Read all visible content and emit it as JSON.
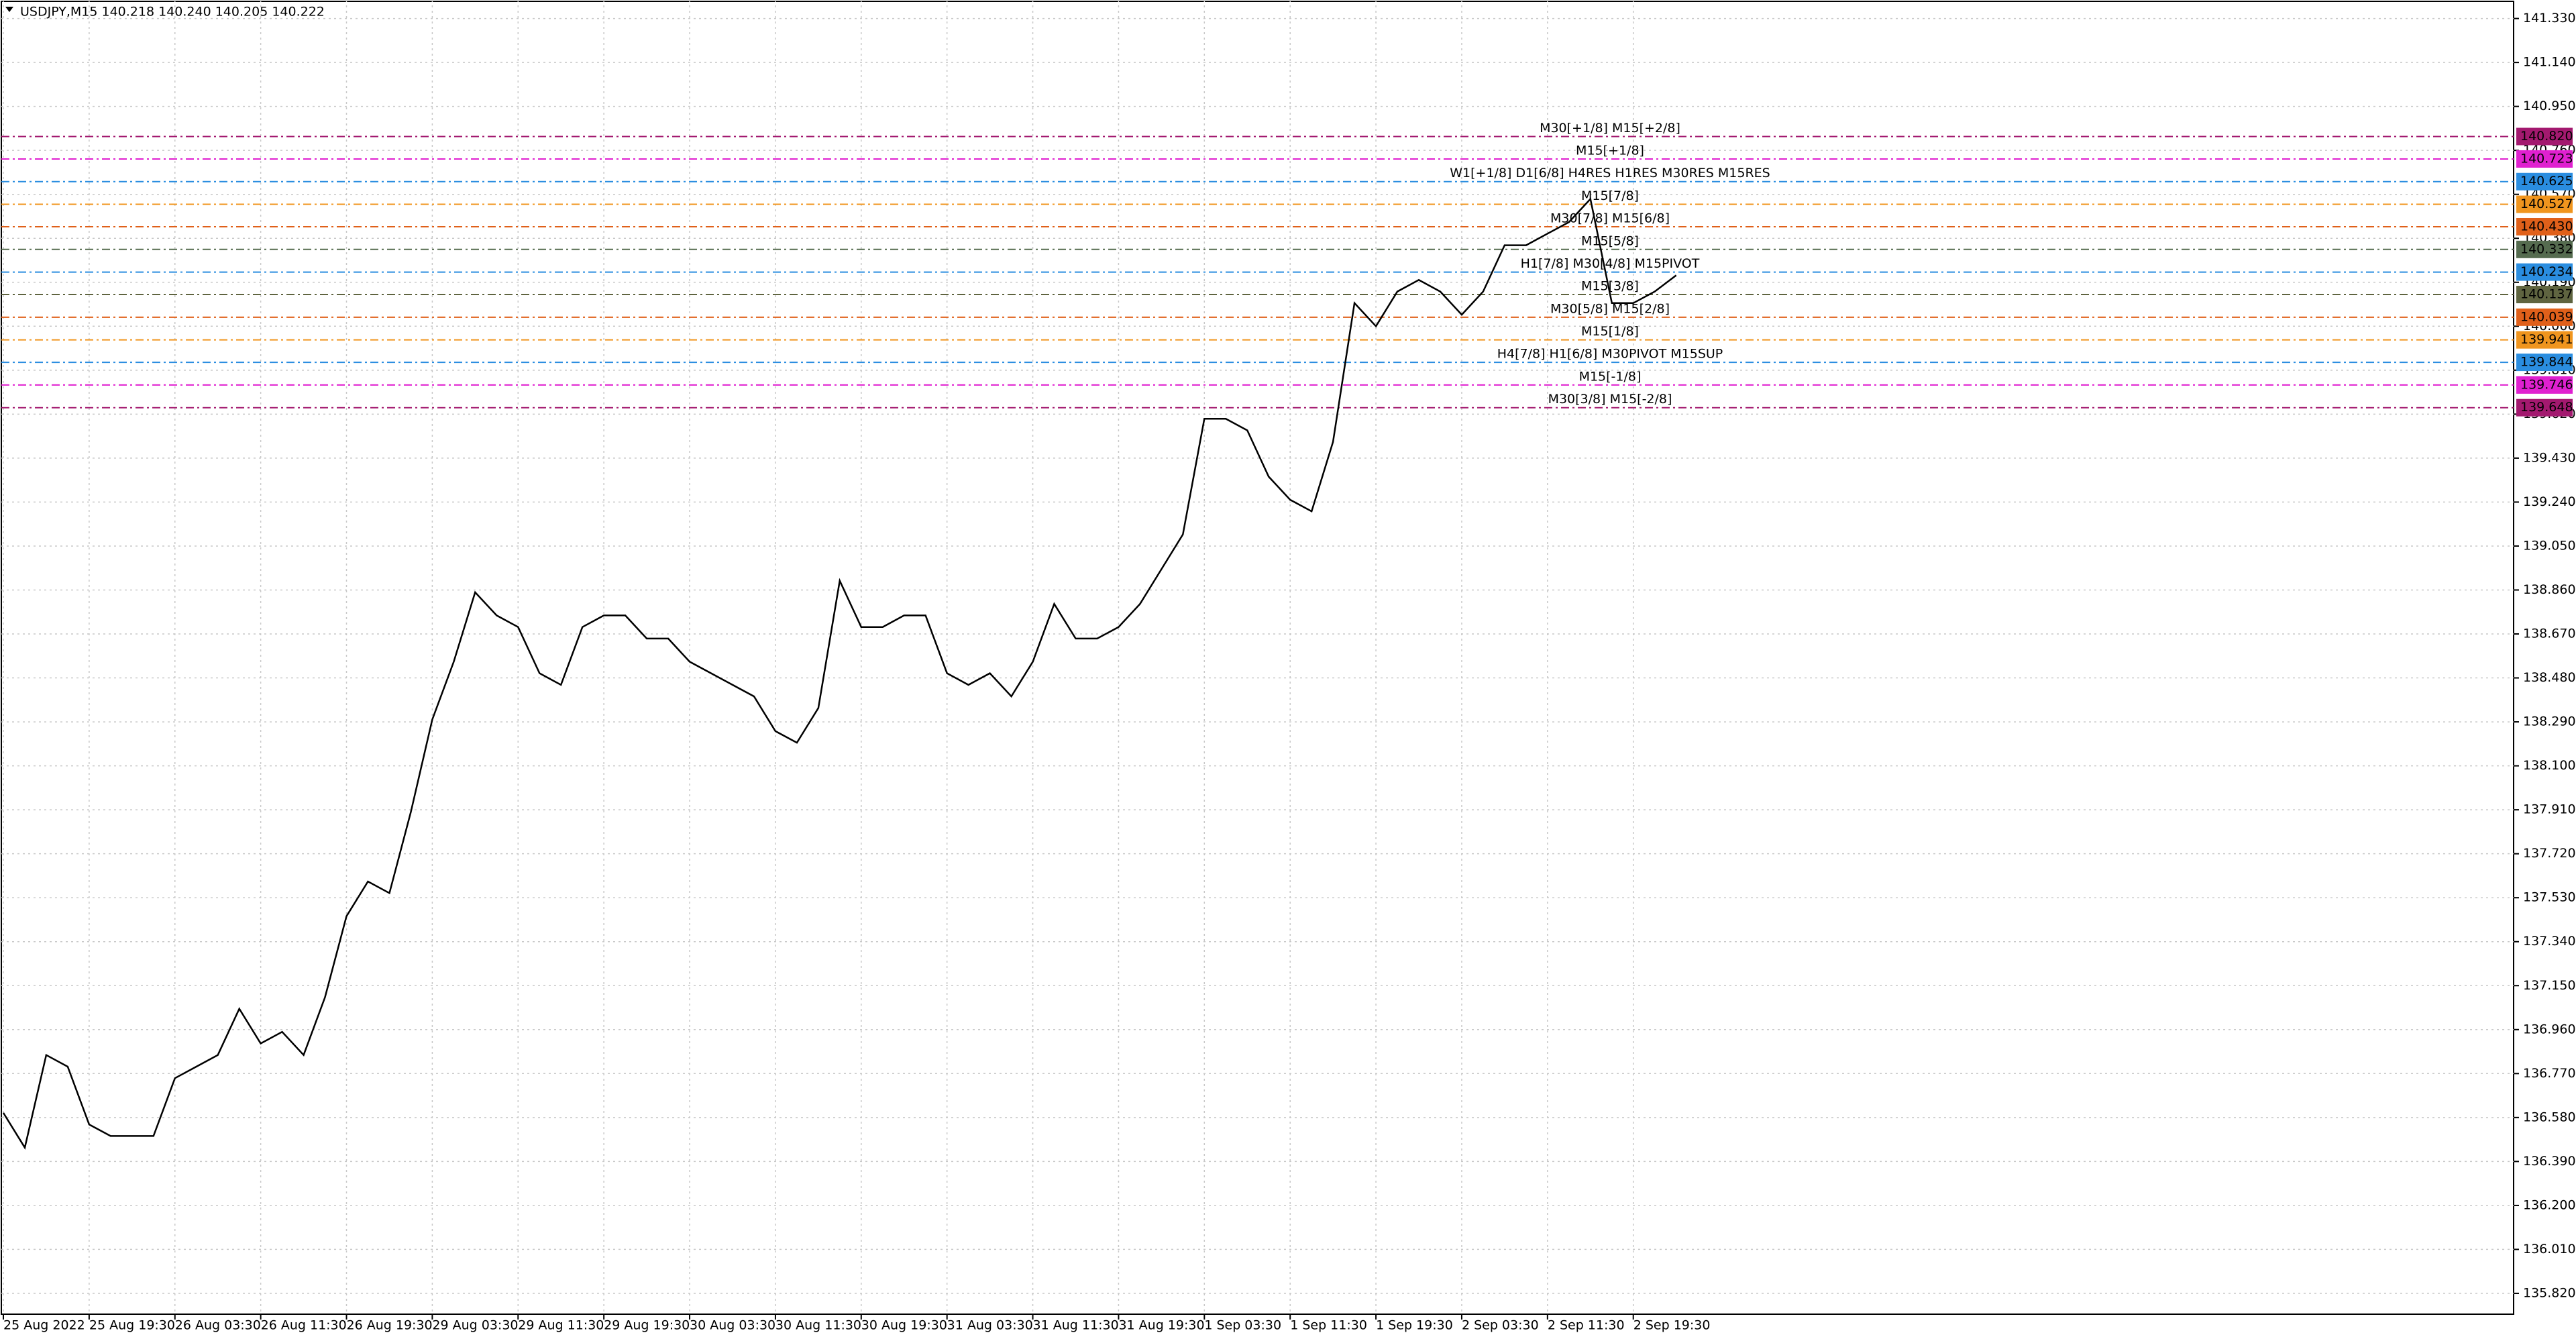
{
  "chart_data": {
    "type": "line",
    "title": "USDJPY,M15  140.218 140.240 140.205 140.222",
    "categories": [
      "25 Aug 2022",
      null,
      null,
      null,
      "25 Aug 19:30",
      null,
      null,
      null,
      "26 Aug 03:30",
      null,
      null,
      null,
      "26 Aug 11:30",
      null,
      null,
      null,
      "26 Aug 19:30",
      null,
      null,
      null,
      "29 Aug 03:30",
      null,
      null,
      null,
      "29 Aug 11:30",
      null,
      null,
      null,
      "29 Aug 19:30",
      null,
      null,
      null,
      "30 Aug 03:30",
      null,
      null,
      null,
      "30 Aug 11:30",
      null,
      null,
      null,
      "30 Aug 19:30",
      null,
      null,
      null,
      "31 Aug 03:30",
      null,
      null,
      null,
      "31 Aug 11:30",
      null,
      null,
      null,
      "31 Aug 19:30",
      null,
      null,
      null,
      "1 Sep 03:30",
      null,
      null,
      null,
      "1 Sep 11:30",
      null,
      null,
      null,
      "1 Sep 19:30",
      null,
      null,
      null,
      "2 Sep 03:30",
      null,
      null,
      null,
      "2 Sep 11:30",
      null,
      null,
      null,
      "2 Sep 19:30",
      null,
      null
    ],
    "series": [
      {
        "name": "USDJPY",
        "color": "#000000",
        "values": [
          136.6,
          136.45,
          136.85,
          136.8,
          136.55,
          136.5,
          136.5,
          136.5,
          136.75,
          136.8,
          136.85,
          137.05,
          136.9,
          136.95,
          136.85,
          137.1,
          137.45,
          137.6,
          137.55,
          137.9,
          138.3,
          138.55,
          138.85,
          138.75,
          138.7,
          138.5,
          138.45,
          138.7,
          138.75,
          138.75,
          138.65,
          138.65,
          138.55,
          138.5,
          138.45,
          138.4,
          138.25,
          138.2,
          138.35,
          138.9,
          138.7,
          138.7,
          138.75,
          138.75,
          138.5,
          138.45,
          138.5,
          138.4,
          138.55,
          138.8,
          138.65,
          138.65,
          138.7,
          138.8,
          138.95,
          139.1,
          139.6,
          139.6,
          139.55,
          139.35,
          139.25,
          139.2,
          139.5,
          140.1,
          140.0,
          140.15,
          140.2,
          140.15,
          140.05,
          140.15,
          140.35,
          140.35,
          140.4,
          140.45,
          140.55,
          140.1,
          140.1,
          140.15,
          140.22
        ]
      }
    ],
    "ylim": [
      135.73,
      141.41
    ],
    "yticks": [
      {
        "value": 141.33,
        "label": "141.330"
      },
      {
        "value": 141.14,
        "label": "141.140"
      },
      {
        "value": 140.95,
        "label": "140.950"
      },
      {
        "value": 140.76,
        "label": "140.760"
      },
      {
        "value": 140.57,
        "label": "140.570"
      },
      {
        "value": 140.38,
        "label": "140.380"
      },
      {
        "value": 140.19,
        "label": "140.190"
      },
      {
        "value": 140.0,
        "label": "140.000"
      },
      {
        "value": 139.81,
        "label": "139.810"
      },
      {
        "value": 139.62,
        "label": "139.620"
      },
      {
        "value": 139.43,
        "label": "139.430"
      },
      {
        "value": 139.24,
        "label": "139.240"
      },
      {
        "value": 139.05,
        "label": "139.050"
      },
      {
        "value": 138.86,
        "label": "138.860"
      },
      {
        "value": 138.67,
        "label": "138.670"
      },
      {
        "value": 138.48,
        "label": "138.480"
      },
      {
        "value": 138.29,
        "label": "138.290"
      },
      {
        "value": 138.1,
        "label": "138.100"
      },
      {
        "value": 137.91,
        "label": "137.910"
      },
      {
        "value": 137.72,
        "label": "137.720"
      },
      {
        "value": 137.53,
        "label": "137.530"
      },
      {
        "value": 137.34,
        "label": "137.340"
      },
      {
        "value": 137.15,
        "label": "137.150"
      },
      {
        "value": 136.96,
        "label": "136.960"
      },
      {
        "value": 136.77,
        "label": "136.770"
      },
      {
        "value": 136.58,
        "label": "136.580"
      },
      {
        "value": 136.39,
        "label": "136.390"
      },
      {
        "value": 136.2,
        "label": "136.200"
      },
      {
        "value": 136.01,
        "label": "136.010"
      },
      {
        "value": 135.82,
        "label": "135.820"
      }
    ],
    "grid": true,
    "levels": [
      {
        "price": 140.82,
        "label": "140.820",
        "text": "M30[+1/8] M15[+2/8]",
        "color": "#a3196f"
      },
      {
        "price": 140.723,
        "label": "140.723",
        "text": "M15[+1/8]",
        "color": "#e020d0"
      },
      {
        "price": 140.625,
        "label": "140.625",
        "text": "W1[+1/8] D1[6/8] H4RES H1RES M30RES M15RES",
        "color": "#2a8de0"
      },
      {
        "price": 140.527,
        "label": "140.527",
        "text": "M15[7/8]",
        "color": "#f0951e"
      },
      {
        "price": 140.43,
        "label": "140.430",
        "text": "M30[7/8] M15[6/8]",
        "color": "#e0601a"
      },
      {
        "price": 140.332,
        "label": "140.332",
        "text": "M15[5/8]",
        "color": "#556b4f"
      },
      {
        "price": 140.234,
        "label": "140.234",
        "text": "H1[7/8] M30[4/8] M15PIVOT",
        "color": "#2a8de0"
      },
      {
        "price": 140.137,
        "label": "140.137",
        "text": "M15[3/8]",
        "color": "#5f6440"
      },
      {
        "price": 140.039,
        "label": "140.039",
        "text": "M30[5/8] M15[2/8]",
        "color": "#e0601a"
      },
      {
        "price": 139.941,
        "label": "139.941",
        "text": "M15[1/8]",
        "color": "#f0951e"
      },
      {
        "price": 139.844,
        "label": "139.844",
        "text": "H4[7/8] H1[6/8] M30PIVOT M15SUP",
        "color": "#2a8de0"
      },
      {
        "price": 139.746,
        "label": "139.746",
        "text": "M15[-1/8]",
        "color": "#e020d0"
      },
      {
        "price": 139.648,
        "label": "139.648",
        "text": "M30[3/8] M15[-2/8]",
        "color": "#a3196f"
      }
    ]
  }
}
